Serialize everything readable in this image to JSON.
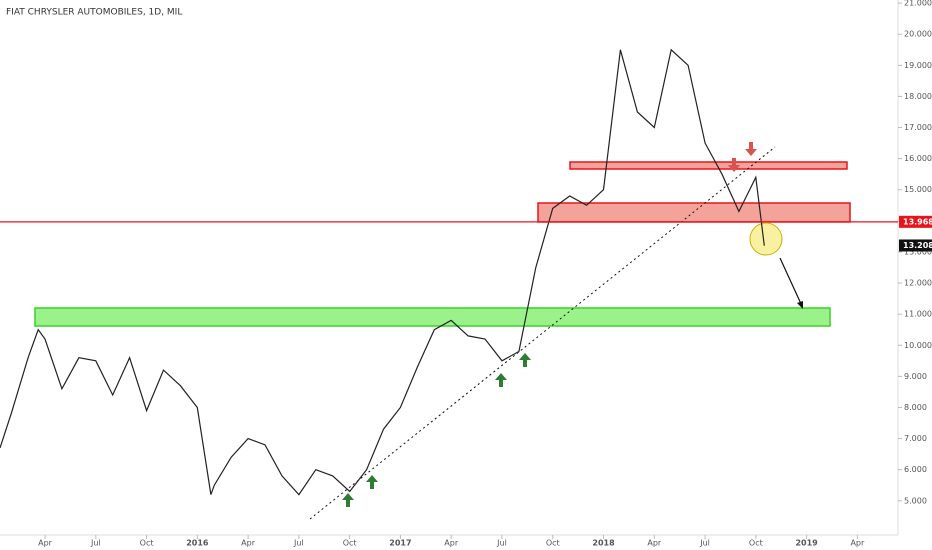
{
  "chart_data": {
    "type": "line",
    "title": "FIAT CHRYSLER AUTOMOBILES, 1D, MIL",
    "x": [
      0.34,
      1,
      2,
      2.6,
      3,
      4,
      5,
      6,
      7,
      8,
      9,
      10,
      11,
      12,
      12.8,
      13,
      14,
      15,
      16,
      17,
      18,
      19,
      20,
      21,
      22,
      23,
      24,
      25,
      26,
      27,
      28,
      29,
      30,
      31,
      32,
      33,
      34,
      35,
      36,
      37,
      38,
      39,
      40,
      41,
      42,
      43,
      44,
      45,
      45.5
    ],
    "series": [
      {
        "color": "#222222",
        "values": [
          6.7,
          7.8,
          9.6,
          10.5,
          10.2,
          8.6,
          9.6,
          9.5,
          8.4,
          9.6,
          7.9,
          9.2,
          8.7,
          8.0,
          5.2,
          5.5,
          6.4,
          7.0,
          6.8,
          5.8,
          5.2,
          6.0,
          5.8,
          5.3,
          6.0,
          7.3,
          8.0,
          9.3,
          10.5,
          10.8,
          10.3,
          10.2,
          9.5,
          9.8,
          12.5,
          14.4,
          14.8,
          14.5,
          15.0,
          19.5,
          17.5,
          17.0,
          19.5,
          19.0,
          16.5,
          15.5,
          14.3,
          15.4,
          13.2
        ]
      }
    ],
    "xlim": [
      0.34,
      53.4
    ],
    "xticks": [
      {
        "value": 3,
        "label": "Apr"
      },
      {
        "value": 6,
        "label": "Jul"
      },
      {
        "value": 9,
        "label": "Oct"
      },
      {
        "value": 12,
        "label": "2016"
      },
      {
        "value": 15,
        "label": "Apr"
      },
      {
        "value": 18,
        "label": "Jul"
      },
      {
        "value": 21,
        "label": "Oct"
      },
      {
        "value": 24,
        "label": "2017"
      },
      {
        "value": 27,
        "label": "Apr"
      },
      {
        "value": 30,
        "label": "Jul"
      },
      {
        "value": 33,
        "label": "Oct"
      },
      {
        "value": 36,
        "label": "2018"
      },
      {
        "value": 39,
        "label": "Apr"
      },
      {
        "value": 42,
        "label": "Jul"
      },
      {
        "value": 45,
        "label": "Oct"
      },
      {
        "value": 48,
        "label": "2019"
      },
      {
        "value": 51,
        "label": "Apr"
      }
    ],
    "ylim": [
      3.9,
      21.1
    ],
    "yticks": [
      {
        "value": 5,
        "label": "5.000"
      },
      {
        "value": 6,
        "label": "6.000"
      },
      {
        "value": 7,
        "label": "7.000"
      },
      {
        "value": 8,
        "label": "8.000"
      },
      {
        "value": 9,
        "label": "9.000"
      },
      {
        "value": 10,
        "label": "10.000"
      },
      {
        "value": 11,
        "label": "11.000"
      },
      {
        "value": 12,
        "label": "12.000"
      },
      {
        "value": 13,
        "label": "13.000"
      },
      {
        "value": 14,
        "label": "14.000"
      },
      {
        "value": 15,
        "label": "15.000"
      },
      {
        "value": 16,
        "label": "16.000"
      },
      {
        "value": 17,
        "label": "17.000"
      },
      {
        "value": 18,
        "label": "18.000"
      },
      {
        "value": 19,
        "label": "19.000"
      },
      {
        "value": 20,
        "label": "20.000"
      },
      {
        "value": 21,
        "label": "21.000"
      }
    ],
    "price_markers": [
      {
        "value": 13.968,
        "color": "#e8141c"
      },
      {
        "value": 13.208,
        "color": "#111111"
      }
    ]
  }
}
